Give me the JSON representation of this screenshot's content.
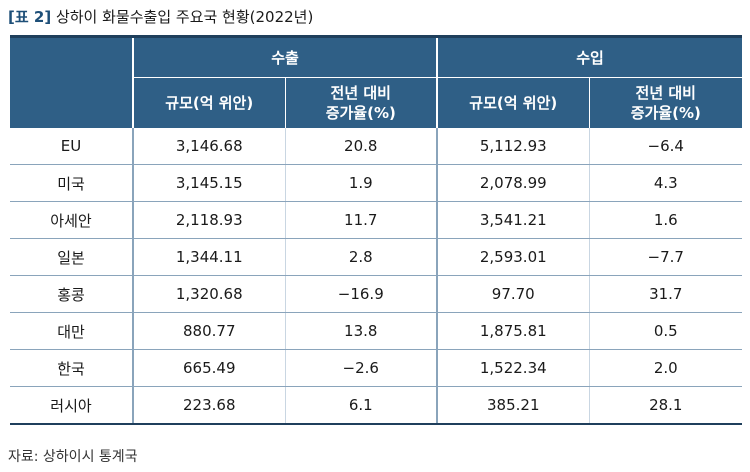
{
  "caption": {
    "tag": "[표 2]",
    "title": "상하이 화물수출입 주요국 현황(2022년)"
  },
  "table": {
    "group_headers": [
      "수출",
      "수입"
    ],
    "sub_headers": [
      "규모(억 위안)",
      "전년 대비\n증가율(%)",
      "규모(억 위안)",
      "전년 대비\n증가율(%)"
    ],
    "rows": [
      {
        "country": "EU",
        "export_value": "3,146.68",
        "export_growth": "20.8",
        "import_value": "5,112.93",
        "import_growth": "−6.4"
      },
      {
        "country": "미국",
        "export_value": "3,145.15",
        "export_growth": "1.9",
        "import_value": "2,078.99",
        "import_growth": "4.3"
      },
      {
        "country": "아세안",
        "export_value": "2,118.93",
        "export_growth": "11.7",
        "import_value": "3,541.21",
        "import_growth": "1.6"
      },
      {
        "country": "일본",
        "export_value": "1,344.11",
        "export_growth": "2.8",
        "import_value": "2,593.01",
        "import_growth": "−7.7"
      },
      {
        "country": "홍콩",
        "export_value": "1,320.68",
        "export_growth": "−16.9",
        "import_value": "97.70",
        "import_growth": "31.7"
      },
      {
        "country": "대만",
        "export_value": "880.77",
        "export_growth": "13.8",
        "import_value": "1,875.81",
        "import_growth": "0.5"
      },
      {
        "country": "한국",
        "export_value": "665.49",
        "export_growth": "−2.6",
        "import_value": "1,522.34",
        "import_growth": "2.0"
      },
      {
        "country": "러시아",
        "export_value": "223.68",
        "export_growth": "6.1",
        "import_value": "385.21",
        "import_growth": "28.1"
      }
    ]
  },
  "source": "자료: 상하이시 통계국",
  "colors": {
    "header_bg": "#2f5f86",
    "caption_tag": "#1e4f78"
  }
}
